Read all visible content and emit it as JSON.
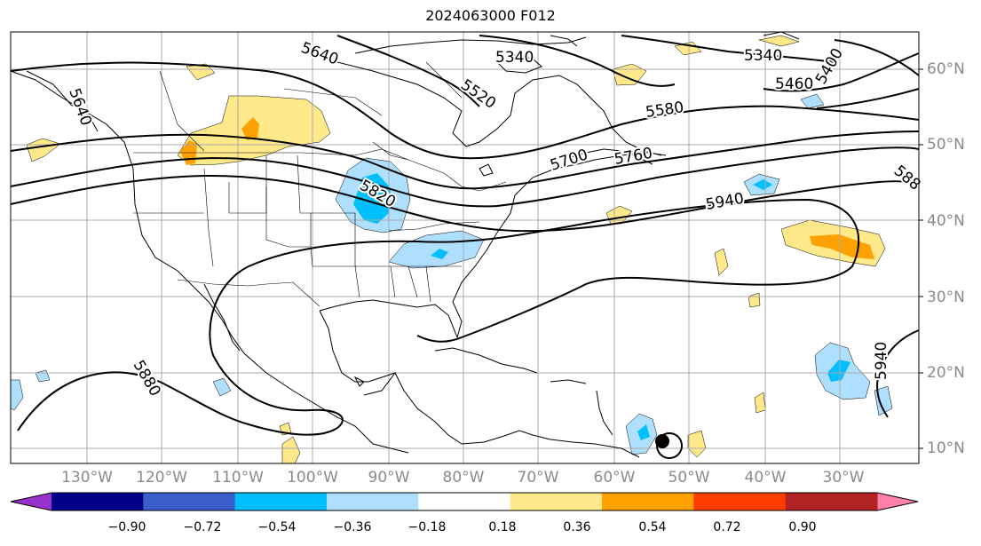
{
  "title": "2024063000 F012",
  "lon_labels": [
    "130°W",
    "120°W",
    "110°W",
    "100°W",
    "90°W",
    "80°W",
    "70°W",
    "60°W",
    "50°W",
    "40°W",
    "30°W"
  ],
  "lat_labels": [
    "60°N",
    "50°N",
    "40°N",
    "30°N",
    "20°N",
    "10°N"
  ],
  "contour_labels": [
    "5640",
    "5340",
    "5520",
    "5340",
    "5460",
    "5400",
    "5580",
    "5640",
    "5700",
    "5760",
    "5820",
    "5940",
    "588",
    "5880",
    "5940"
  ],
  "colorbar": {
    "ticks": [
      "−0.90",
      "−0.72",
      "−0.54",
      "−0.36",
      "−0.18",
      "0.18",
      "0.36",
      "0.54",
      "0.72",
      "0.90"
    ],
    "colors": [
      "#9932cc",
      "#00008b",
      "#3a5fcd",
      "#00bfff",
      "#afdfff",
      "#ffffff",
      "#ffe98a",
      "#ffa100",
      "#ff3c00",
      "#b22222",
      "#ff80a8"
    ]
  }
}
